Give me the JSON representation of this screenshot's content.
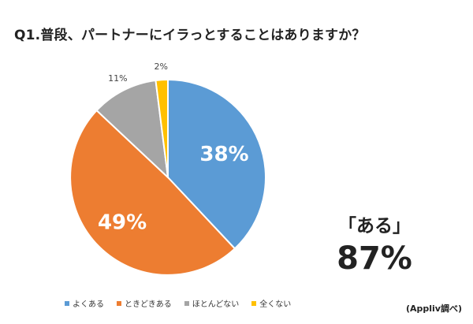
{
  "title": "Q1.普段、パートナーにイラっとすることはありますか？",
  "chart_data": {
    "type": "pie",
    "categories": [
      "よくある",
      "ときどきある",
      "ほとんどない",
      "全くない"
    ],
    "values": [
      38,
      49,
      11,
      2
    ],
    "value_labels": [
      "38%",
      "49%",
      "11%",
      "2%"
    ],
    "colors": [
      "#5b9bd5",
      "#ed7d31",
      "#a5a5a5",
      "#ffc000"
    ],
    "legend_position": "bottom"
  },
  "summary": {
    "label": "「ある」",
    "value": "87%"
  },
  "source": "(Appliv調べ)"
}
